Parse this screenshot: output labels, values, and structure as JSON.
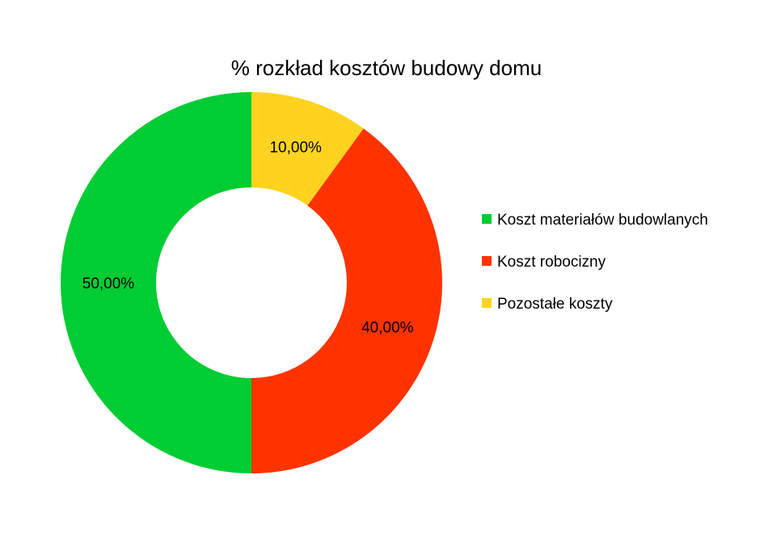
{
  "chart_data": {
    "type": "pie",
    "variant": "donut",
    "title": "% rozkład kosztów budowy domu",
    "categories": [
      "Koszt materiałów budowlanych",
      "Koszt robocizny",
      "Pozostałe koszty"
    ],
    "values": [
      50,
      40,
      10
    ],
    "value_labels": [
      "50,00%",
      "40,00%",
      "10,00%"
    ],
    "colors": [
      "#00cc33",
      "#ff3300",
      "#ffd320"
    ],
    "legend_position": "right",
    "start": "top, clockwise: 10,00%, 40,00%, 50,00%"
  }
}
